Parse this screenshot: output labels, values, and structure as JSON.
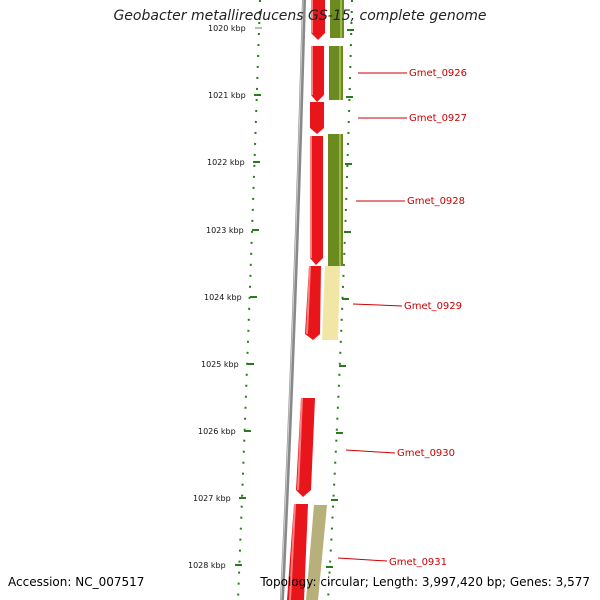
{
  "title": "Geobacter metallireducens GS-15, complete genome",
  "accession_text": "Accession: NC_007517",
  "stats_text": "Topology: circular; Length: 3,997,420 bp; Genes: 3,577",
  "colors": {
    "backbone": "#888888",
    "tick": "#2a7a1e",
    "gene_forward": "#e8151b",
    "gene_reverse_dark": "#6b8a1f",
    "gene_reverse_light": "#f2e6a6",
    "gene_reverse_khaki": "#b8b07a",
    "label": "#cc0000"
  },
  "ticks": [
    "1020 kbp",
    "1021 kbp",
    "1022 kbp",
    "1023 kbp",
    "1024 kbp",
    "1025 kbp",
    "1026 kbp",
    "1027 kbp",
    "1028 kbp"
  ],
  "genes": [
    {
      "name": "Gmet_0926",
      "track": "reverse",
      "color": "gene_reverse_dark"
    },
    {
      "name": "Gmet_0927",
      "track": "forward",
      "color": "gene_forward"
    },
    {
      "name": "Gmet_0928",
      "track": "reverse",
      "color": "gene_reverse_dark"
    },
    {
      "name": "Gmet_0929",
      "track": "reverse",
      "color": "gene_reverse_light"
    },
    {
      "name": "Gmet_0930",
      "track": "forward",
      "color": "gene_forward"
    },
    {
      "name": "Gmet_0931",
      "track": "reverse",
      "color": "gene_reverse_khaki"
    }
  ]
}
